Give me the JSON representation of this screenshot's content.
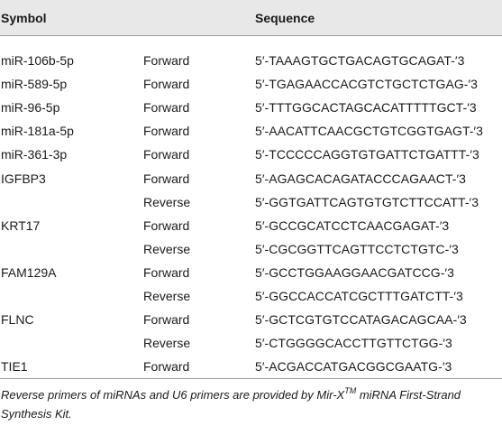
{
  "table": {
    "headers": [
      "Symbol",
      "",
      "Sequence"
    ],
    "rows": [
      {
        "symbol": "miR-106b-5p",
        "direction": "Forward",
        "sequence": "5′-TAAAGTGCTGACAGTGCAGAT-′3"
      },
      {
        "symbol": "miR-589-5p",
        "direction": "Forward",
        "sequence": "5′-TGAGAACCACGTCTGCTCTGAG-′3"
      },
      {
        "symbol": "miR-96-5p",
        "direction": "Forward",
        "sequence": "5′-TTTGGCACTAGCACATTTTTGCT-′3"
      },
      {
        "symbol": "miR-181a-5p",
        "direction": "Forward",
        "sequence": "5′-AACATTCAACGCTGTCGGTGAGT-′3"
      },
      {
        "symbol": "miR-361-3p",
        "direction": "Forward",
        "sequence": "5′-TCCCCCAGGTGTGATTCTGATTT-′3"
      },
      {
        "symbol": "IGFBP3",
        "direction": "Forward",
        "sequence": "5′-AGAGCACAGATACCCAGAACT-′3"
      },
      {
        "symbol": "",
        "direction": "Reverse",
        "sequence": "5′-GGTGATTCAGTGTGTCTTCCATT-′3"
      },
      {
        "symbol": "KRT17",
        "direction": "Forward",
        "sequence": "5′-GCCGCATCCTCAACGAGAT-′3"
      },
      {
        "symbol": "",
        "direction": "Reverse",
        "sequence": "5′-CGCGGTTCAGTTCCTCTGTC-′3"
      },
      {
        "symbol": "FAM129A",
        "direction": "Forward",
        "sequence": "5′-GCCTGGAAGGAACGATCCG-′3"
      },
      {
        "symbol": "",
        "direction": "Reverse",
        "sequence": "5′-GGCCACCATCGCTTTGATCTT-′3"
      },
      {
        "symbol": "FLNC",
        "direction": "Forward",
        "sequence": "5′-GCTCGTGTCCATAGACAGCAA-′3"
      },
      {
        "symbol": "",
        "direction": "Reverse",
        "sequence": "5′-CTGGGGCACCTTGTTCTGG-′3"
      },
      {
        "symbol": "TIE1",
        "direction": "Forward",
        "sequence": "5′-ACGACCATGACGGCGAATG-′3"
      }
    ]
  },
  "footnote": {
    "before": "Reverse primers of miRNAs and U6 primers are provided by Mir-X",
    "sup": "TM",
    "after": " miRNA First-Strand Synthesis Kit."
  }
}
